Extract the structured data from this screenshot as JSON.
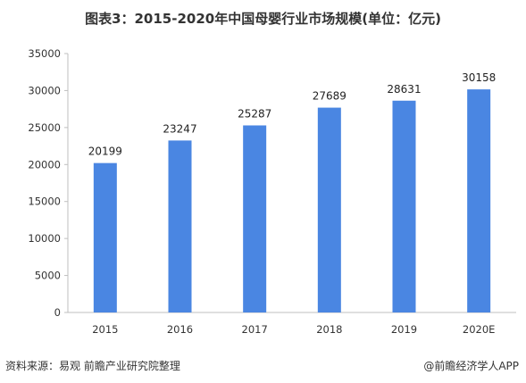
{
  "chart_data": {
    "type": "bar",
    "title": "图表3：2015-2020年中国母婴行业市场规模(单位：亿元)",
    "categories": [
      "2015",
      "2016",
      "2017",
      "2018",
      "2019",
      "2020E"
    ],
    "values": [
      20199,
      23247,
      25287,
      27689,
      28631,
      30158
    ],
    "data_labels": [
      "20199",
      "23247",
      "25287",
      "27689",
      "28631",
      "30158"
    ],
    "y_ticks": [
      "0",
      "5000",
      "10000",
      "15000",
      "20000",
      "25000",
      "30000",
      "35000"
    ],
    "ylim": [
      0,
      35000
    ],
    "xlabel": "",
    "ylabel": "",
    "grid": false,
    "bar_color": "#4a86e2"
  },
  "footer": {
    "source": "资料来源：易观 前瞻产业研究院整理",
    "brand": "@前瞻经济学人APP"
  }
}
